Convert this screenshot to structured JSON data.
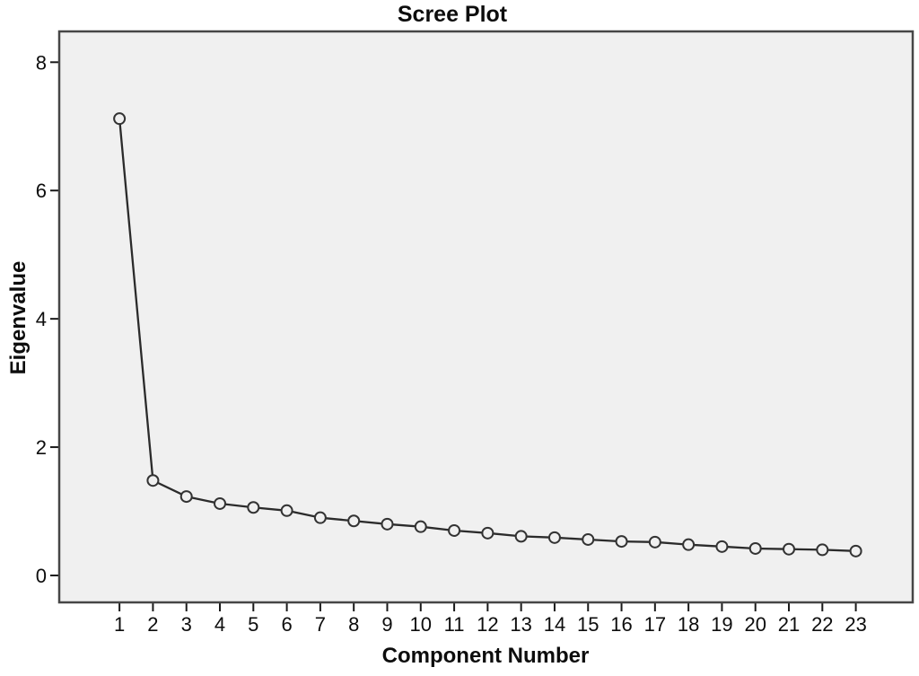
{
  "chart_data": {
    "type": "line",
    "title": "Scree Plot",
    "xlabel": "Component Number",
    "ylabel": "Eigenvalue",
    "series_name": "Eigenvalue",
    "categories": [
      1,
      2,
      3,
      4,
      5,
      6,
      7,
      8,
      9,
      10,
      11,
      12,
      13,
      14,
      15,
      16,
      17,
      18,
      19,
      20,
      21,
      22,
      23
    ],
    "values": [
      7.12,
      1.48,
      1.23,
      1.12,
      1.06,
      1.01,
      0.9,
      0.85,
      0.8,
      0.76,
      0.7,
      0.66,
      0.61,
      0.59,
      0.56,
      0.53,
      0.52,
      0.48,
      0.45,
      0.42,
      0.41,
      0.4,
      0.38
    ],
    "y_ticks": [
      0,
      2,
      4,
      6,
      8
    ],
    "ylim": [
      -0.42,
      8.48
    ],
    "xlim": [
      -0.8,
      24.7
    ],
    "grid": false,
    "legend": "none",
    "marker": "open-circle",
    "colors": {
      "page_bg": "#ffffff",
      "plot_bg": "#f0f0f0",
      "frame": "#464646",
      "line": "#2b2b2b",
      "marker_stroke": "#333333",
      "marker_fill": "#f0f0f0",
      "tick": "#1a1a1a",
      "text": "#0d0d0d"
    }
  }
}
